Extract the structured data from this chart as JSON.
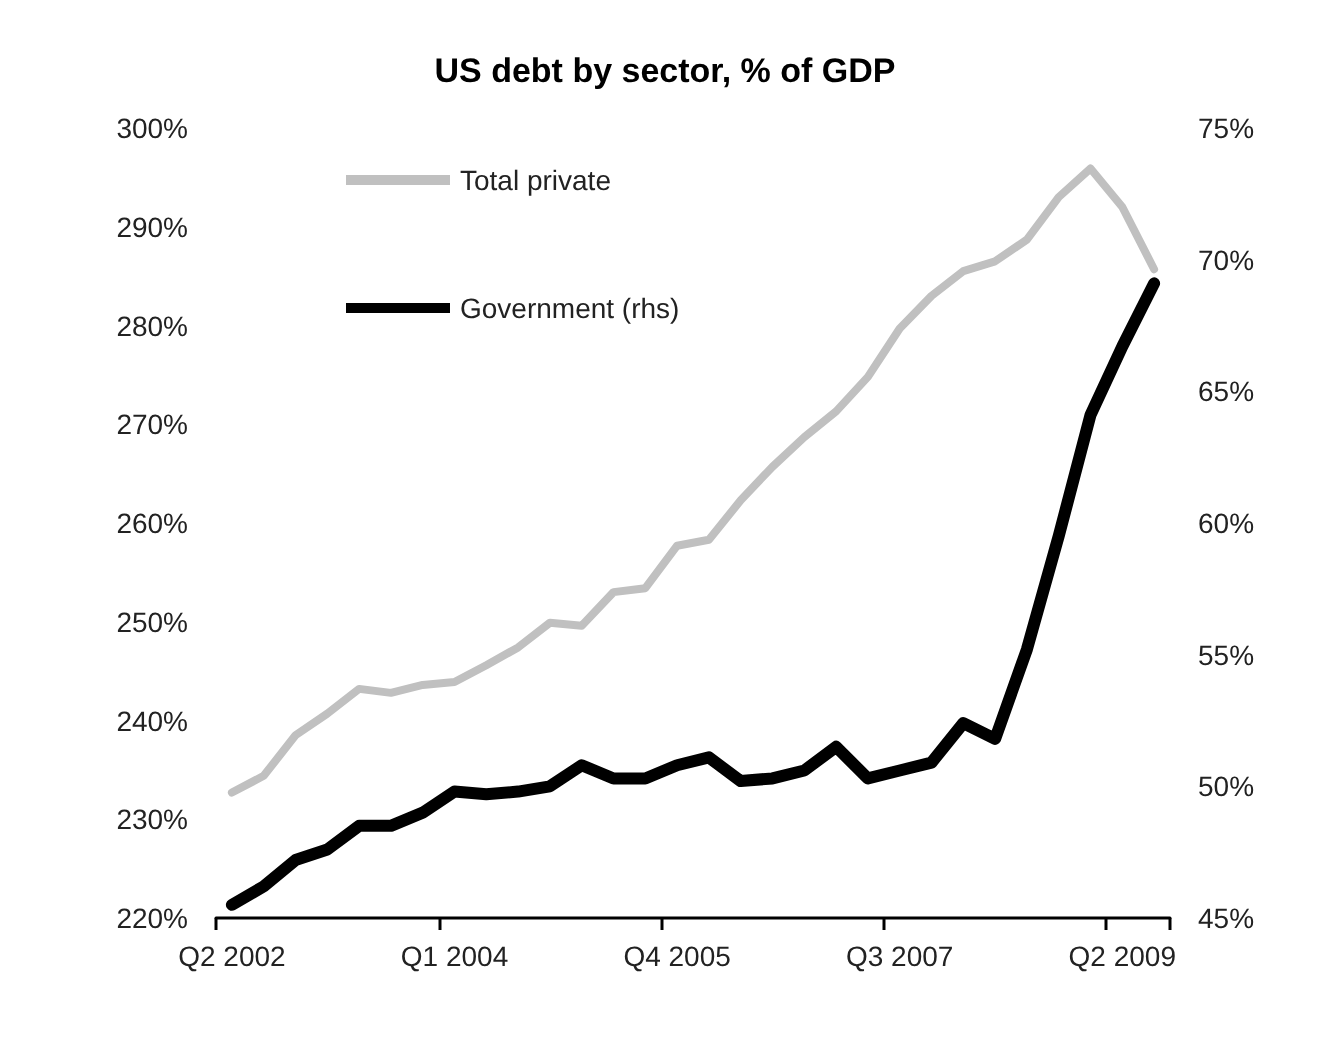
{
  "chart_data": {
    "type": "line",
    "title": "US debt by sector, % of GDP",
    "categories": [
      "Q2 2002",
      null,
      null,
      null,
      null,
      null,
      null,
      "Q1 2004",
      null,
      null,
      null,
      null,
      null,
      null,
      "Q4 2005",
      null,
      null,
      null,
      null,
      null,
      null,
      "Q3 2007",
      null,
      null,
      null,
      null,
      null,
      null,
      "Q2 2009",
      null
    ],
    "series": [
      {
        "name": "Total private",
        "color": "#c0c0c0",
        "values": [
          232.7,
          234.4,
          238.5,
          240.7,
          243.2,
          242.8,
          243.6,
          243.9,
          245.6,
          247.4,
          249.9,
          249.6,
          253,
          253.4,
          257.7,
          258.3,
          262.3,
          265.7,
          268.7,
          271.3,
          274.8,
          279.7,
          283,
          285.5,
          286.5,
          288.7,
          293,
          295.9,
          292,
          285.7
        ]
      },
      {
        "name": "Government (rhs)",
        "color": "#000000",
        "axis": "y2",
        "values": [
          45.5,
          46.2,
          47.2,
          47.6,
          48.5,
          48.5,
          49,
          49.8,
          49.7,
          49.8,
          50,
          50.8,
          50.3,
          50.3,
          50.8,
          51.1,
          50.2,
          50.3,
          50.6,
          51.5,
          50.3,
          50.6,
          50.9,
          52.4,
          51.8,
          55.2,
          59.5,
          64.1,
          66.7,
          69.1
        ]
      }
    ],
    "ylim": [
      220,
      300
    ],
    "yticks": [
      {
        "value": 220,
        "label": "220%"
      },
      {
        "value": 230,
        "label": "230%"
      },
      {
        "value": 240,
        "label": "240%"
      },
      {
        "value": 250,
        "label": "250%"
      },
      {
        "value": 260,
        "label": "260%"
      },
      {
        "value": 270,
        "label": "270%"
      },
      {
        "value": 280,
        "label": "280%"
      },
      {
        "value": 290,
        "label": "290%"
      },
      {
        "value": 300,
        "label": "300%"
      }
    ],
    "y2lim": [
      45,
      75
    ],
    "y2ticks": [
      {
        "value": 45,
        "label": "45%"
      },
      {
        "value": 50,
        "label": "50%"
      },
      {
        "value": 55,
        "label": "55%"
      },
      {
        "value": 60,
        "label": "60%"
      },
      {
        "value": 65,
        "label": "65%"
      },
      {
        "value": 70,
        "label": "70%"
      },
      {
        "value": 75,
        "label": "75%"
      }
    ],
    "grid": false,
    "legend": "top left",
    "marker": "none",
    "line_style": "solid"
  }
}
